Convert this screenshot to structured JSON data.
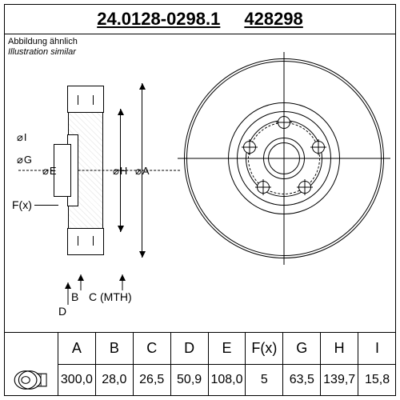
{
  "header": {
    "part_long": "24.0128-0298.1",
    "part_short": "428298"
  },
  "subtitle": {
    "line1": "Abbildung ähnlich",
    "line2": "Illustration similar"
  },
  "section_dims": {
    "I": "I",
    "G": "G",
    "E": "E",
    "H": "H",
    "A": "A",
    "Fx": "F(x)",
    "B": "B",
    "D": "D",
    "C": "C (MTH)"
  },
  "disc": {
    "bolt_count": 5,
    "outer_d": 250,
    "rings": [
      250,
      244,
      140,
      118,
      96,
      52,
      40
    ],
    "colors": {
      "stroke": "#000000",
      "bg": "#ffffff"
    }
  },
  "table": {
    "headers": [
      "A",
      "B",
      "C",
      "D",
      "E",
      "F(x)",
      "G",
      "H",
      "I"
    ],
    "values": [
      "300,0",
      "28,0",
      "26,5",
      "50,9",
      "108,0",
      "5",
      "63,5",
      "139,7",
      "15,8"
    ]
  },
  "style": {
    "border_color": "#000000",
    "background": "#ffffff",
    "font": "Arial",
    "header_fontsize": 22,
    "table_fontsize": 16
  }
}
